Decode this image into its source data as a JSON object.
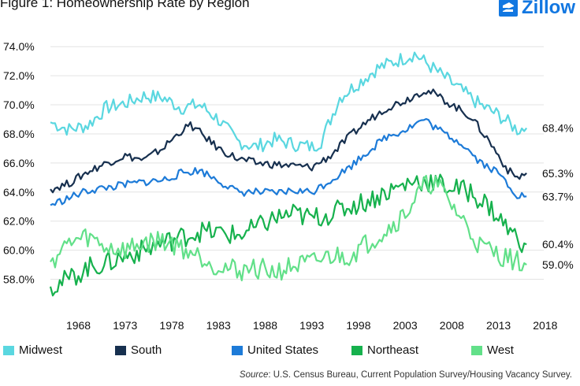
{
  "title": "Figure 1: Homeownership Rate by Region",
  "brand": "Zillow",
  "source_prefix": "Source",
  "source_text": ": U.S. Census Bureau, Current Population Survey/Housing Vacancy Survey.",
  "colors": {
    "Midwest": "#5ad7e0",
    "South": "#17304f",
    "United States": "#1d7bd8",
    "Northeast": "#16b14d",
    "West": "#62e089",
    "brand": "#1277e1"
  },
  "chart_data": {
    "type": "line",
    "xlim": [
      1965,
      2017
    ],
    "ylim": [
      57,
      74.5
    ],
    "x_ticks": [
      "1968",
      "1973",
      "1978",
      "1983",
      "1988",
      "1993",
      "1998",
      "2003",
      "2008",
      "2013",
      "2018"
    ],
    "y_ticks": [
      "58.0%",
      "60.0%",
      "62.0%",
      "64.0%",
      "66.0%",
      "68.0%",
      "70.0%",
      "72.0%",
      "74.0%"
    ],
    "grid": "horizontal",
    "legend_position": "bottom",
    "series": [
      {
        "name": "Midwest",
        "end_label": "68.4%",
        "points": [
          [
            1965,
            68.8
          ],
          [
            1967,
            68.3
          ],
          [
            1969,
            68.6
          ],
          [
            1971,
            69.8
          ],
          [
            1973,
            70.1
          ],
          [
            1975,
            70.6
          ],
          [
            1977,
            70.5
          ],
          [
            1979,
            69.8
          ],
          [
            1981,
            70.0
          ],
          [
            1983,
            69.0
          ],
          [
            1985,
            67.5
          ],
          [
            1987,
            67.1
          ],
          [
            1989,
            67.6
          ],
          [
            1991,
            67.3
          ],
          [
            1993,
            67.1
          ],
          [
            1994,
            67.5
          ],
          [
            1995,
            69.0
          ],
          [
            1996,
            70.5
          ],
          [
            1998,
            71.5
          ],
          [
            2000,
            72.5
          ],
          [
            2002,
            73.0
          ],
          [
            2004,
            73.5
          ],
          [
            2005,
            73.0
          ],
          [
            2007,
            72.0
          ],
          [
            2009,
            71.0
          ],
          [
            2011,
            70.0
          ],
          [
            2013,
            69.3
          ],
          [
            2015,
            68.3
          ],
          [
            2016,
            68.4
          ]
        ]
      },
      {
        "name": "South",
        "end_label": "65.3%",
        "points": [
          [
            1965,
            64.2
          ],
          [
            1967,
            64.6
          ],
          [
            1969,
            65.4
          ],
          [
            1971,
            66.0
          ],
          [
            1973,
            66.5
          ],
          [
            1975,
            66.2
          ],
          [
            1977,
            67.0
          ],
          [
            1979,
            68.2
          ],
          [
            1980,
            68.6
          ],
          [
            1981,
            68.1
          ],
          [
            1983,
            67.0
          ],
          [
            1985,
            66.3
          ],
          [
            1987,
            66.0
          ],
          [
            1989,
            65.9
          ],
          [
            1991,
            65.8
          ],
          [
            1993,
            65.7
          ],
          [
            1995,
            66.5
          ],
          [
            1997,
            67.8
          ],
          [
            1999,
            68.9
          ],
          [
            2001,
            69.8
          ],
          [
            2003,
            70.3
          ],
          [
            2005,
            71.0
          ],
          [
            2006,
            70.8
          ],
          [
            2008,
            70.0
          ],
          [
            2010,
            69.2
          ],
          [
            2012,
            67.5
          ],
          [
            2014,
            65.5
          ],
          [
            2015,
            65.0
          ],
          [
            2016,
            65.3
          ]
        ]
      },
      {
        "name": "United States",
        "end_label": "63.7%",
        "points": [
          [
            1965,
            63.1
          ],
          [
            1967,
            63.6
          ],
          [
            1969,
            64.1
          ],
          [
            1971,
            64.3
          ],
          [
            1973,
            64.5
          ],
          [
            1975,
            64.7
          ],
          [
            1977,
            64.8
          ],
          [
            1979,
            65.3
          ],
          [
            1981,
            65.5
          ],
          [
            1983,
            64.8
          ],
          [
            1985,
            64.0
          ],
          [
            1987,
            64.0
          ],
          [
            1989,
            63.9
          ],
          [
            1991,
            64.1
          ],
          [
            1993,
            64.0
          ],
          [
            1995,
            64.8
          ],
          [
            1997,
            65.7
          ],
          [
            1999,
            66.8
          ],
          [
            2001,
            67.8
          ],
          [
            2003,
            68.3
          ],
          [
            2005,
            69.0
          ],
          [
            2007,
            68.1
          ],
          [
            2009,
            67.4
          ],
          [
            2011,
            66.1
          ],
          [
            2013,
            65.3
          ],
          [
            2015,
            63.8
          ],
          [
            2016,
            63.7
          ]
        ]
      },
      {
        "name": "Northeast",
        "end_label": "60.4%",
        "points": [
          [
            1965,
            57.5
          ],
          [
            1967,
            58.0
          ],
          [
            1969,
            58.8
          ],
          [
            1971,
            59.1
          ],
          [
            1973,
            59.6
          ],
          [
            1975,
            60.0
          ],
          [
            1977,
            60.5
          ],
          [
            1979,
            60.9
          ],
          [
            1981,
            61.3
          ],
          [
            1983,
            61.2
          ],
          [
            1985,
            61.0
          ],
          [
            1987,
            61.5
          ],
          [
            1989,
            62.2
          ],
          [
            1991,
            62.5
          ],
          [
            1993,
            62.2
          ],
          [
            1995,
            62.5
          ],
          [
            1997,
            63.0
          ],
          [
            1999,
            63.4
          ],
          [
            2001,
            64.0
          ],
          [
            2003,
            64.5
          ],
          [
            2004,
            64.8
          ],
          [
            2006,
            64.7
          ],
          [
            2008,
            64.3
          ],
          [
            2010,
            64.0
          ],
          [
            2012,
            63.0
          ],
          [
            2014,
            61.5
          ],
          [
            2015,
            60.8
          ],
          [
            2016,
            60.4
          ]
        ]
      },
      {
        "name": "West",
        "end_label": "59.0%",
        "points": [
          [
            1965,
            59.2
          ],
          [
            1967,
            60.5
          ],
          [
            1969,
            60.9
          ],
          [
            1971,
            60.2
          ],
          [
            1973,
            60.0
          ],
          [
            1975,
            60.5
          ],
          [
            1977,
            60.7
          ],
          [
            1979,
            60.2
          ],
          [
            1981,
            59.6
          ],
          [
            1983,
            58.9
          ],
          [
            1985,
            58.6
          ],
          [
            1987,
            58.8
          ],
          [
            1989,
            58.5
          ],
          [
            1991,
            58.9
          ],
          [
            1993,
            59.1
          ],
          [
            1995,
            59.6
          ],
          [
            1997,
            59.6
          ],
          [
            1999,
            60.5
          ],
          [
            2001,
            61.4
          ],
          [
            2003,
            62.5
          ],
          [
            2004,
            63.5
          ],
          [
            2005,
            64.3
          ],
          [
            2006,
            64.7
          ],
          [
            2007,
            64.0
          ],
          [
            2009,
            62.2
          ],
          [
            2011,
            60.3
          ],
          [
            2013,
            59.7
          ],
          [
            2015,
            59.2
          ],
          [
            2016,
            59.0
          ]
        ]
      }
    ]
  }
}
